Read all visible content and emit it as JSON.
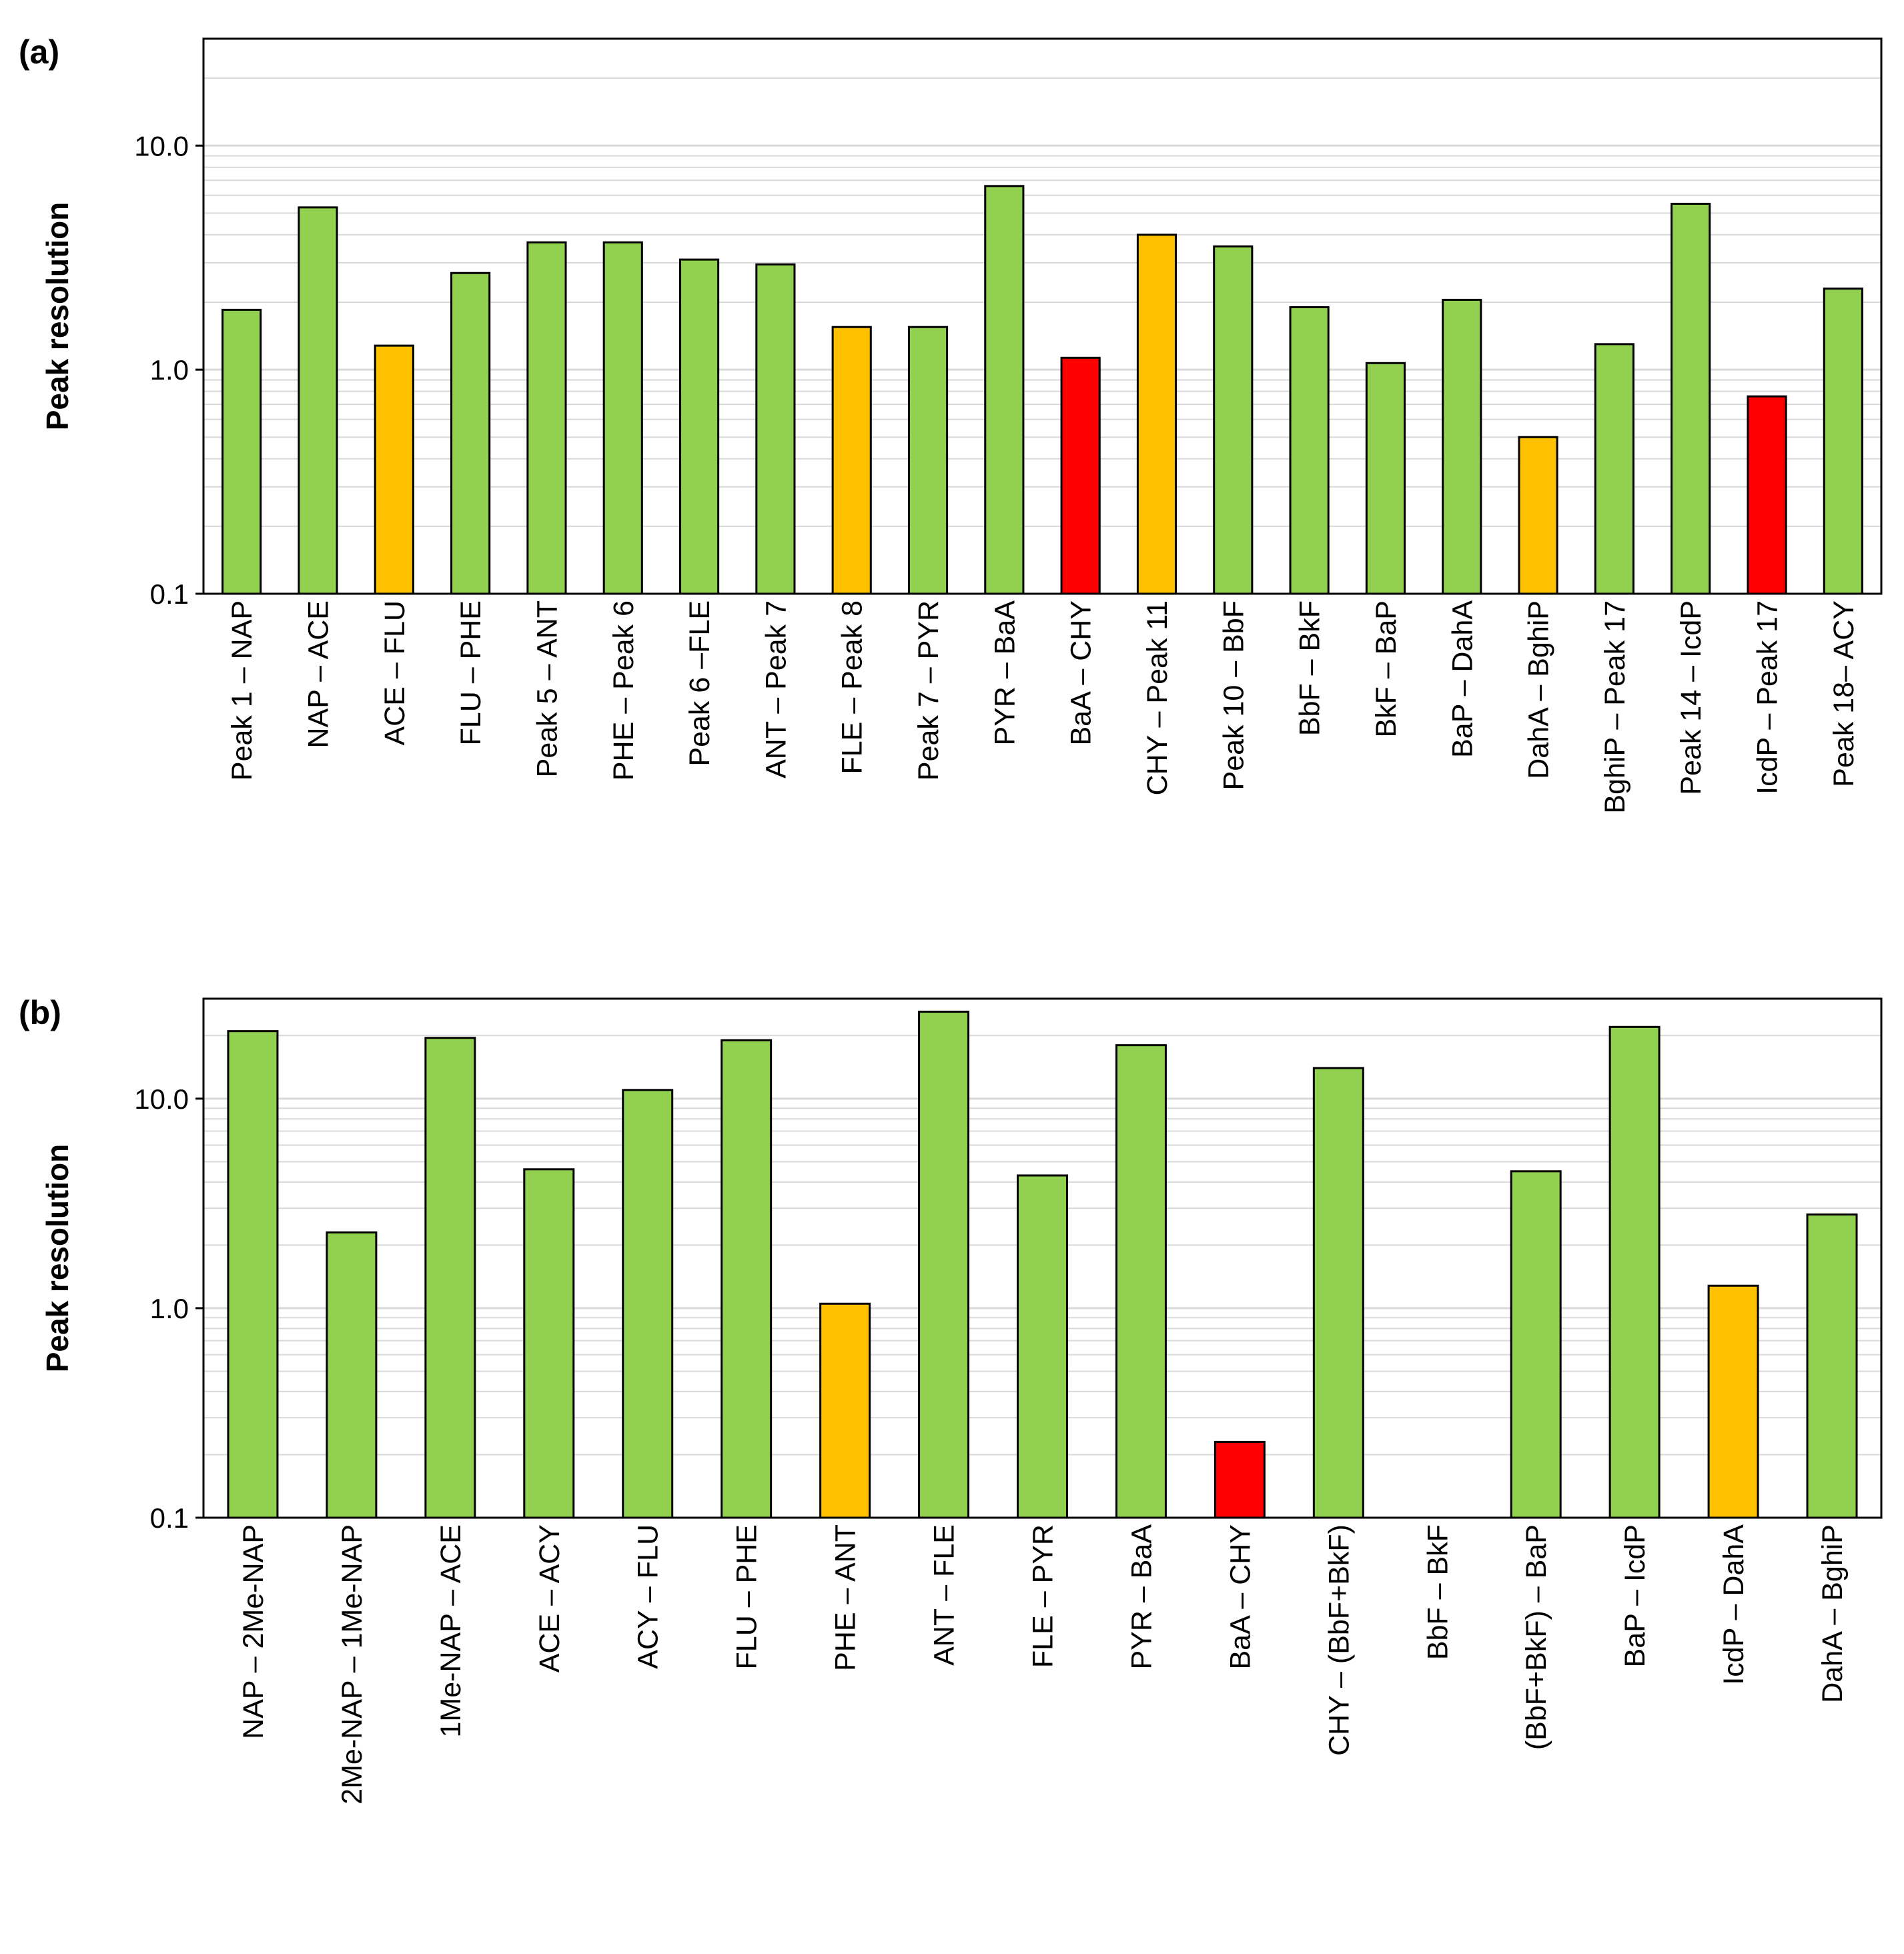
{
  "colors": {
    "green": "#92d050",
    "orange": "#ffc000",
    "red": "#ff0000",
    "grid": "#d9d9d9",
    "axis": "#000000"
  },
  "chart_data": [
    {
      "type": "bar",
      "panel_label": "(a)",
      "ylabel": "Peak resolution",
      "yscale": "log",
      "ylim": [
        0.1,
        30
      ],
      "ytick_labels": [
        "0.1",
        "1.0",
        "10.0"
      ],
      "ytick_values": [
        0.1,
        1,
        10
      ],
      "grid": true,
      "categories": [
        "Peak 1 – NAP",
        "NAP – ACE",
        "ACE – FLU",
        "FLU – PHE",
        "Peak 5 – ANT",
        "PHE – Peak 6",
        "Peak 6 –FLE",
        "ANT – Peak 7",
        "FLE – Peak 8",
        "Peak 7 – PYR",
        "PYR – BaA",
        "BaA – CHY",
        "CHY – Peak 11",
        "Peak 10 – BbF",
        "BbF – BkF",
        "BkF – BaP",
        "BaP – DahA",
        "DahA – BghiP",
        "BghiP – Peak 17",
        "Peak 14 – IcdP",
        "IcdP – Peak 17",
        "Peak 18– ACY"
      ],
      "values": [
        1.85,
        5.3,
        1.28,
        2.7,
        3.7,
        3.7,
        3.1,
        2.95,
        1.55,
        1.55,
        6.6,
        1.13,
        4.0,
        3.55,
        1.9,
        1.07,
        2.05,
        0.5,
        1.3,
        5.5,
        0.76,
        2.3
      ],
      "bar_colors": [
        "green",
        "green",
        "orange",
        "green",
        "green",
        "green",
        "green",
        "green",
        "orange",
        "green",
        "green",
        "red",
        "orange",
        "green",
        "green",
        "green",
        "green",
        "orange",
        "green",
        "green",
        "red",
        "green"
      ]
    },
    {
      "type": "bar",
      "panel_label": "(b)",
      "ylabel": "Peak resolution",
      "yscale": "log",
      "ylim": [
        0.1,
        30
      ],
      "ytick_labels": [
        "0.1",
        "1.0",
        "10.0"
      ],
      "ytick_values": [
        0.1,
        1,
        10
      ],
      "grid": true,
      "categories": [
        "NAP – 2Me-NAP",
        "2Me-NAP – 1Me-NAP",
        "1Me-NAP – ACE",
        "ACE – ACY",
        "ACY – FLU",
        "FLU – PHE",
        "PHE – ANT",
        "ANT – FLE",
        "FLE – PYR",
        "PYR – BaA",
        "BaA – CHY",
        "CHY – (BbF+BkF)",
        "BbF – BkF",
        "(BbF+BkF) – BaP",
        "BaP – IcdP",
        "IcdP – DahA",
        "DahA – BghiP"
      ],
      "values": [
        21,
        2.3,
        19.5,
        4.6,
        11,
        19,
        1.05,
        26,
        4.3,
        18,
        0.23,
        14,
        null,
        4.5,
        22,
        1.28,
        2.8
      ],
      "bar_colors": [
        "green",
        "green",
        "green",
        "green",
        "green",
        "green",
        "orange",
        "green",
        "green",
        "green",
        "red",
        "green",
        null,
        "green",
        "green",
        "orange",
        "green"
      ]
    }
  ]
}
